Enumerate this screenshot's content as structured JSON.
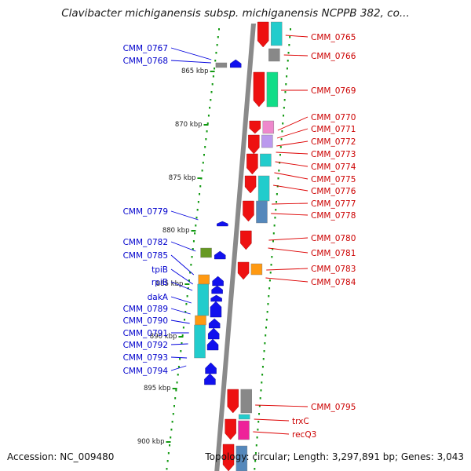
{
  "title": "Clavibacter michiganensis subsp. michiganensis NCPPB 382, co...",
  "footer": {
    "accession": "Accession: NC_009480",
    "summary": "Topology: circular; Length: 3,297,891 bp; Genes: 3,043"
  },
  "scale_labels": [
    "865 kbp",
    "870 kbp",
    "875 kbp",
    "880 kbp",
    "885 kbp",
    "890 kbp",
    "895 kbp",
    "900 kbp"
  ],
  "genes": [
    {
      "label": "CMM_0765",
      "side": "right"
    },
    {
      "label": "CMM_0766",
      "side": "right"
    },
    {
      "label": "CMM_0767",
      "side": "left"
    },
    {
      "label": "CMM_0768",
      "side": "left"
    },
    {
      "label": "CMM_0769",
      "side": "right"
    },
    {
      "label": "CMM_0770",
      "side": "right"
    },
    {
      "label": "CMM_0771",
      "side": "right"
    },
    {
      "label": "CMM_0772",
      "side": "right"
    },
    {
      "label": "CMM_0773",
      "side": "right"
    },
    {
      "label": "CMM_0774",
      "side": "right"
    },
    {
      "label": "CMM_0775",
      "side": "right"
    },
    {
      "label": "CMM_0776",
      "side": "right"
    },
    {
      "label": "CMM_0777",
      "side": "right"
    },
    {
      "label": "CMM_0778",
      "side": "right"
    },
    {
      "label": "CMM_0779",
      "side": "left"
    },
    {
      "label": "CMM_0780",
      "side": "right"
    },
    {
      "label": "CMM_0781",
      "side": "right"
    },
    {
      "label": "CMM_0782",
      "side": "left"
    },
    {
      "label": "CMM_0783",
      "side": "right"
    },
    {
      "label": "CMM_0784",
      "side": "right"
    },
    {
      "label": "CMM_0785",
      "side": "left"
    },
    {
      "label": "tpiB",
      "side": "left"
    },
    {
      "label": "rpiB",
      "side": "left"
    },
    {
      "label": "dakA",
      "side": "left"
    },
    {
      "label": "CMM_0789",
      "side": "left"
    },
    {
      "label": "CMM_0790",
      "side": "left"
    },
    {
      "label": "CMM_0791",
      "side": "left"
    },
    {
      "label": "CMM_0792",
      "side": "left"
    },
    {
      "label": "CMM_0793",
      "side": "left"
    },
    {
      "label": "CMM_0794",
      "side": "left"
    },
    {
      "label": "CMM_0795",
      "side": "right"
    },
    {
      "label": "trxC",
      "side": "right"
    },
    {
      "label": "recQ3",
      "side": "right"
    }
  ],
  "colors": {
    "forward_strand": "#ee1111",
    "reverse_strand": "#1111ee",
    "backbone": "#8a8a8a",
    "cds_cyan": "#22cccc",
    "cds_green": "#11dd88",
    "cds_orange": "#ff9911",
    "cds_gray": "#888888",
    "cds_magenta": "#ee2299",
    "cds_olive": "#669922",
    "cds_steel": "#5588bb",
    "tick": "#119911"
  }
}
